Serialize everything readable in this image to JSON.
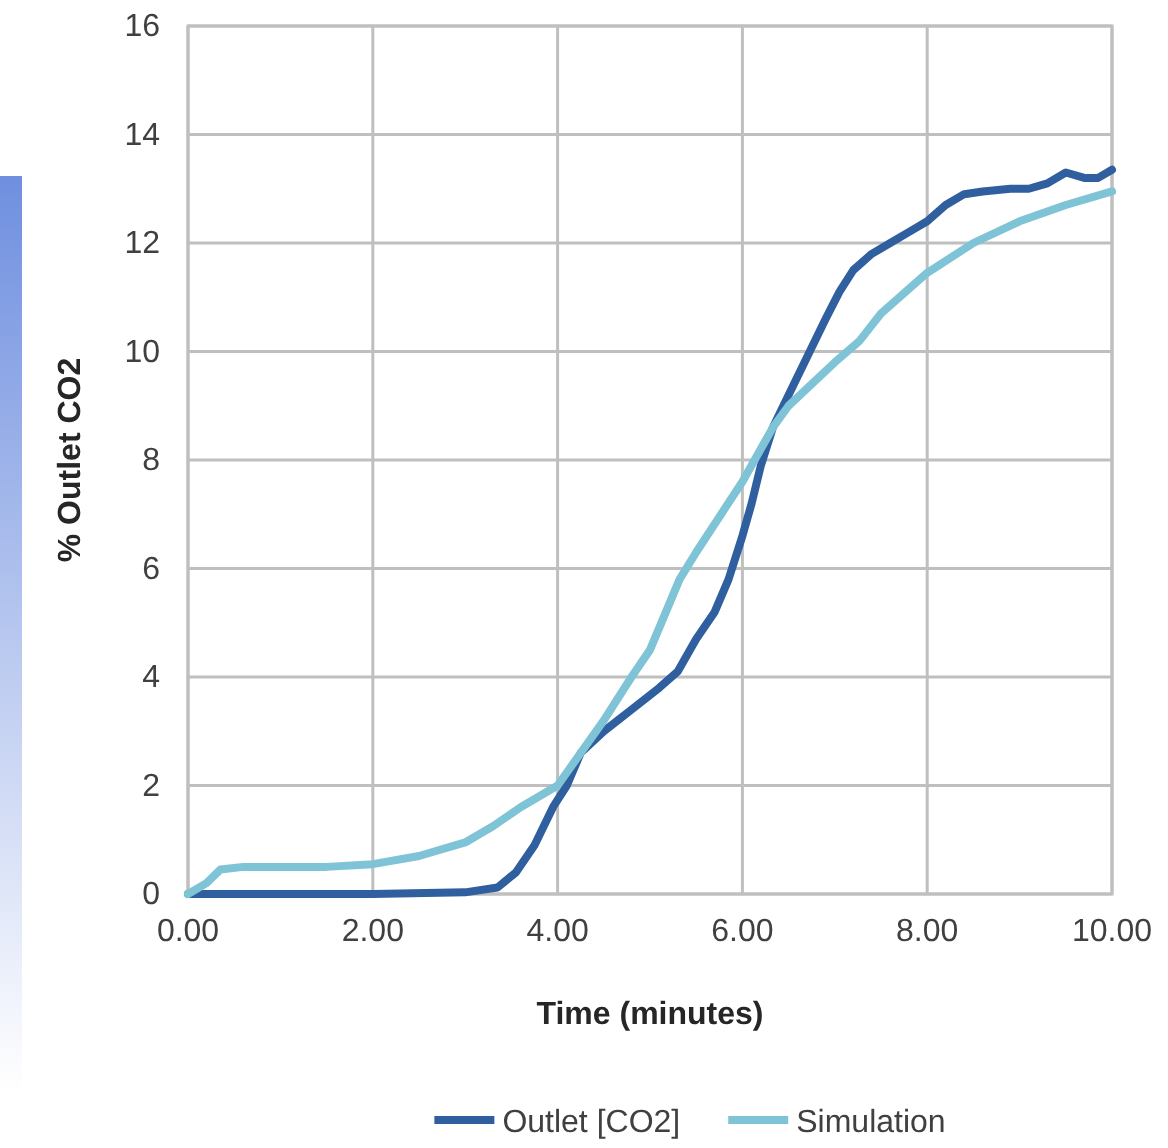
{
  "chart_data": {
    "type": "line",
    "xlabel": "Time (minutes)",
    "ylabel": "% Outlet CO2",
    "xlim": [
      0,
      10
    ],
    "ylim": [
      0,
      16
    ],
    "xticks": [
      {
        "value": 0,
        "label": "0.00"
      },
      {
        "value": 2,
        "label": "2.00"
      },
      {
        "value": 4,
        "label": "4.00"
      },
      {
        "value": 6,
        "label": "6.00"
      },
      {
        "value": 8,
        "label": "8.00"
      },
      {
        "value": 10,
        "label": "10.00"
      }
    ],
    "yticks": [
      0,
      2,
      4,
      6,
      8,
      10,
      12,
      14,
      16
    ],
    "grid": true,
    "legend": "bottom",
    "marker": "none",
    "line_style": "solid",
    "series": [
      {
        "name": "Outlet [CO2]",
        "color": "#2f5f9e",
        "x": [
          0,
          2.0,
          3.0,
          3.35,
          3.55,
          3.75,
          3.95,
          4.1,
          4.25,
          4.5,
          4.8,
          5.1,
          5.3,
          5.5,
          5.7,
          5.85,
          6.0,
          6.1,
          6.2,
          6.33,
          6.5,
          6.7,
          6.9,
          7.05,
          7.2,
          7.4,
          7.6,
          7.8,
          8.0,
          8.2,
          8.4,
          8.6,
          8.9,
          9.1,
          9.3,
          9.5,
          9.7,
          9.85,
          10
        ],
        "values": [
          0,
          0,
          0.03,
          0.12,
          0.4,
          0.9,
          1.6,
          2.0,
          2.6,
          3.0,
          3.4,
          3.8,
          4.1,
          4.7,
          5.2,
          5.8,
          6.6,
          7.2,
          7.9,
          8.6,
          9.2,
          9.9,
          10.6,
          11.1,
          11.5,
          11.8,
          12.0,
          12.2,
          12.4,
          12.7,
          12.9,
          12.95,
          13.0,
          13.0,
          13.1,
          13.3,
          13.2,
          13.2,
          13.35
        ]
      },
      {
        "name": "Simulation",
        "color": "#7fc3d6",
        "x": [
          0,
          0.2,
          0.35,
          0.6,
          1.5,
          2.0,
          2.5,
          3.0,
          3.3,
          3.6,
          4.0,
          4.5,
          4.8,
          5.0,
          5.32,
          5.5,
          6.0,
          6.33,
          6.5,
          7.0,
          7.27,
          7.5,
          8.0,
          8.5,
          9.0,
          9.5,
          10
        ],
        "values": [
          0,
          0.2,
          0.45,
          0.5,
          0.5,
          0.55,
          0.7,
          0.95,
          1.25,
          1.6,
          2.0,
          3.2,
          4.0,
          4.5,
          5.8,
          6.3,
          7.6,
          8.6,
          9.0,
          9.8,
          10.2,
          10.7,
          11.45,
          12.0,
          12.4,
          12.7,
          12.95
        ]
      }
    ]
  }
}
